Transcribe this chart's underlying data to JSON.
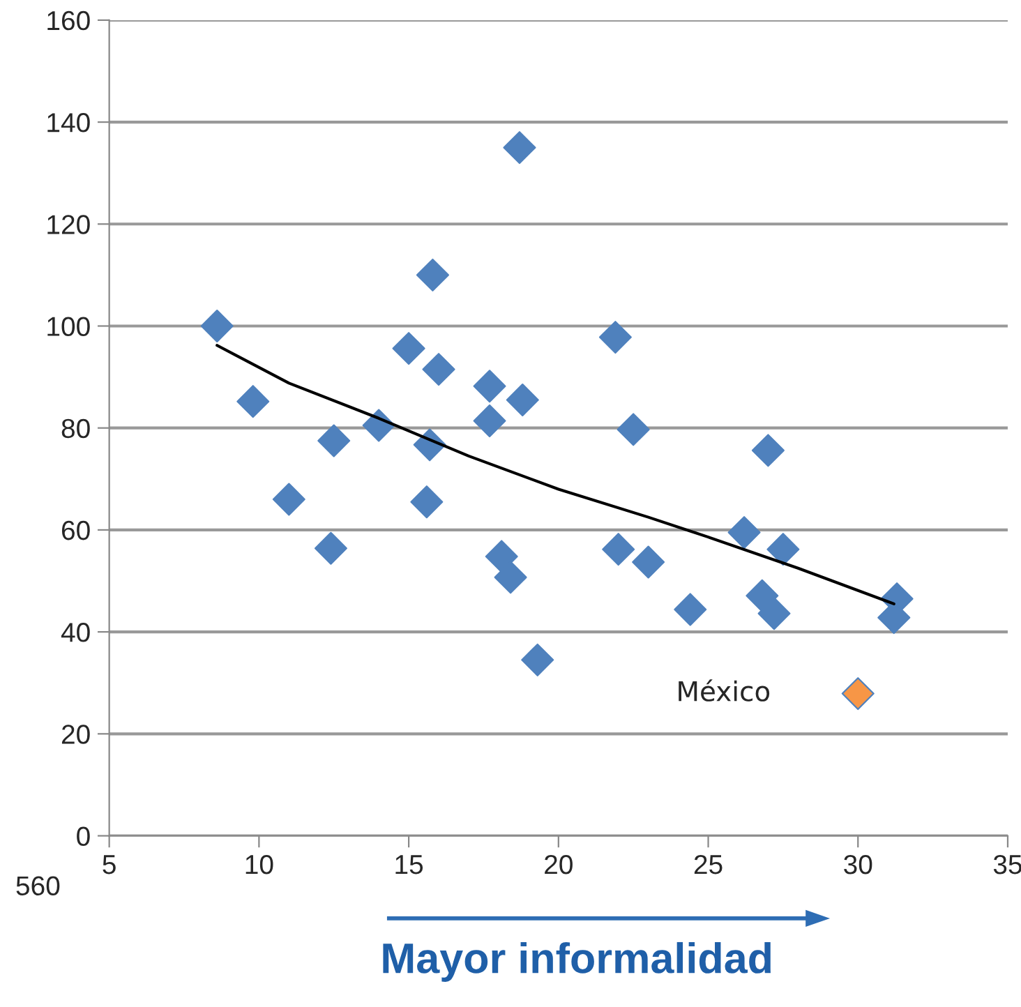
{
  "chart_data": {
    "type": "scatter",
    "xlabel": "Mayor informalidad",
    "xlim": [
      5,
      35
    ],
    "xticks": [
      5,
      10,
      15,
      20,
      25,
      30,
      35
    ],
    "ylim": [
      0,
      160
    ],
    "yticks": [
      0,
      20,
      40,
      60,
      80,
      100,
      120,
      140,
      160
    ],
    "grid": "y",
    "series": [
      {
        "color": "#4f81bd",
        "marker": "diamond",
        "x": [
          8.6,
          9.8,
          11.0,
          12.5,
          12.4,
          14.0,
          15.0,
          15.8,
          16.0,
          15.7,
          15.6,
          17.7,
          17.7,
          18.8,
          18.7,
          18.1,
          18.4,
          19.3,
          21.9,
          22.5,
          22.0,
          23.0,
          24.4,
          26.2,
          27.0,
          26.8,
          27.2,
          27.5,
          31.3,
          31.2
        ],
        "values": [
          100,
          85.2,
          66,
          77.5,
          56.4,
          80.5,
          95.6,
          110,
          91.5,
          76.7,
          65.5,
          88.2,
          81.4,
          85.5,
          135,
          54.8,
          50.7,
          34.5,
          97.8,
          79.7,
          56.2,
          53.7,
          44.4,
          59.5,
          75.6,
          47.1,
          43.6,
          56.2,
          46.5,
          42.8
        ]
      },
      {
        "name": "México",
        "color": "#f79646",
        "marker": "diamond",
        "x": [
          30.0
        ],
        "values": [
          27.9
        ]
      },
      {
        "type": "line",
        "color": "#000000",
        "marker": "none",
        "x": [
          8.6,
          11,
          14,
          17,
          20,
          23,
          25,
          28,
          31.2
        ],
        "values": [
          96.2,
          88.8,
          81.9,
          74.5,
          68,
          62.5,
          58.6,
          52.5,
          45.5
        ]
      }
    ],
    "annotations": [
      "560"
    ]
  }
}
